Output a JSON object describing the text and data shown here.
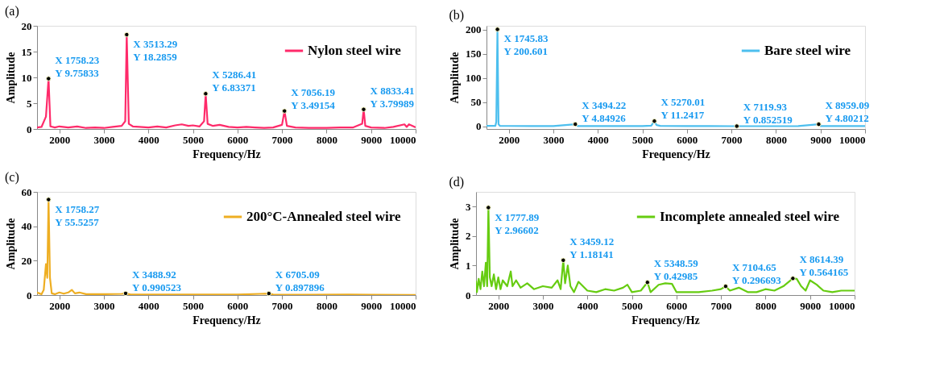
{
  "chart_data": [
    {
      "type": "line",
      "title": "(a)",
      "xlabel": "Frequency/Hz",
      "ylabel": "Amplitude",
      "xlim": [
        1500,
        10000
      ],
      "xticks": [
        2000,
        3000,
        4000,
        5000,
        6000,
        7000,
        8000,
        9000,
        10000
      ],
      "ylim": [
        0,
        20
      ],
      "yticks": [
        0,
        5,
        10,
        15,
        20
      ],
      "grid": false,
      "legend": "top right",
      "series": [
        {
          "name": "Nylon steel wire",
          "color": "#ff2a6a",
          "x": [
            1500,
            1600,
            1700,
            1758.23,
            1800,
            1900,
            2000,
            2200,
            2400,
            2600,
            2800,
            3000,
            3200,
            3400,
            3480,
            3513.29,
            3560,
            3650,
            3800,
            4000,
            4200,
            4400,
            4600,
            4750,
            4900,
            5000,
            5150,
            5250,
            5286.41,
            5330,
            5450,
            5600,
            5800,
            6000,
            6200,
            6400,
            6600,
            6800,
            7000,
            7056.19,
            7110,
            7300,
            7600,
            8000,
            8300,
            8600,
            8800,
            8833.41,
            8870,
            9000,
            9300,
            9500,
            9750,
            9800,
            9850,
            10000
          ],
          "values": [
            0.3,
            0.4,
            2.4,
            9.75833,
            0.5,
            0.3,
            0.5,
            0.3,
            0.5,
            0.2,
            0.3,
            0.2,
            0.4,
            0.6,
            1.5,
            18.2859,
            1.0,
            0.5,
            0.4,
            0.3,
            0.5,
            0.3,
            0.7,
            0.9,
            0.6,
            0.7,
            0.5,
            1.5,
            6.83371,
            1.0,
            0.6,
            0.8,
            0.4,
            0.3,
            0.4,
            0.3,
            0.2,
            0.3,
            0.8,
            3.49154,
            0.6,
            0.3,
            0.2,
            0.2,
            0.3,
            0.3,
            1.0,
            3.79989,
            0.6,
            0.3,
            0.2,
            0.4,
            0.9,
            0.4,
            0.9,
            0.3
          ]
        }
      ],
      "annotations": [
        {
          "text": "X 1758.23\nY 9.75833",
          "x": 1758.23,
          "y": 9.75833
        },
        {
          "text": "X 3513.29\nY 18.2859",
          "x": 3513.29,
          "y": 18.2859
        },
        {
          "text": "X 5286.41\nY 6.83371",
          "x": 5286.41,
          "y": 6.83371
        },
        {
          "text": "X 7056.19\nY 3.49154",
          "x": 7056.19,
          "y": 3.49154
        },
        {
          "text": "X 8833.41\nY 3.79989",
          "x": 8833.41,
          "y": 3.79989
        }
      ]
    },
    {
      "type": "line",
      "title": "(b)",
      "xlabel": "Frequency/Hz",
      "ylabel": "Amplitude",
      "xlim": [
        1500,
        10000
      ],
      "xticks": [
        2000,
        3000,
        4000,
        5000,
        6000,
        7000,
        8000,
        9000,
        10000
      ],
      "ylim": [
        -5,
        208
      ],
      "yticks": [
        0,
        50,
        100,
        150,
        200
      ],
      "grid": false,
      "legend": "top right",
      "series": [
        {
          "name": "Bare steel wire",
          "color": "#4dbfee",
          "x": [
            1500,
            1700,
            1720,
            1745.83,
            1770,
            1800,
            2000,
            2500,
            3000,
            3494.22,
            3550,
            4000,
            4500,
            5000,
            5200,
            5270.01,
            5320,
            5400,
            6000,
            6500,
            7000,
            7119.93,
            7500,
            8000,
            8500,
            8959.09,
            9000,
            9500,
            10000
          ],
          "values": [
            1.5,
            1.5,
            10,
            200.601,
            5,
            1.5,
            1.2,
            1.0,
            1.0,
            4.84926,
            1,
            1,
            1,
            1,
            2,
            11.2417,
            3,
            1.5,
            1,
            1,
            0.8,
            0.852519,
            0.8,
            0.8,
            1,
            4.80212,
            1,
            1,
            1
          ]
        }
      ],
      "annotations": [
        {
          "text": "X 1745.83\nY 200.601",
          "x": 1745.83,
          "y": 200.601
        },
        {
          "text": "X 3494.22\nY 4.84926",
          "x": 3494.22,
          "y": 4.84926
        },
        {
          "text": "X 5270.01\nY 11.2417",
          "x": 5270.01,
          "y": 11.2417
        },
        {
          "text": "X 7119.93\nY 0.852519",
          "x": 7119.93,
          "y": 0.852519
        },
        {
          "text": "X 8959.09\nY 4.80212",
          "x": 8959.09,
          "y": 4.80212
        }
      ]
    },
    {
      "type": "line",
      "title": "(c)",
      "xlabel": "Frequency/Hz",
      "ylabel": "Amplitude",
      "xlim": [
        1500,
        10000
      ],
      "xticks": [
        2000,
        3000,
        4000,
        5000,
        6000,
        7000,
        8000,
        9000,
        10000
      ],
      "ylim": [
        0,
        60
      ],
      "yticks": [
        0,
        20,
        40,
        60
      ],
      "grid": false,
      "legend": "top right",
      "series": [
        {
          "name": "200°C-Annealed steel wire",
          "color": "#eeae22",
          "x": [
            1500,
            1550,
            1600,
            1650,
            1700,
            1730,
            1758.27,
            1790,
            1830,
            1900,
            2000,
            2100,
            2200,
            2280,
            2350,
            2450,
            2600,
            3000,
            3400,
            3488.92,
            3600,
            4000,
            5000,
            6000,
            6500,
            6705.09,
            6800,
            7500,
            8500,
            9000,
            10000
          ],
          "values": [
            1.5,
            1.0,
            0.5,
            3,
            18,
            10,
            55.5257,
            10,
            1,
            0.5,
            1.5,
            0.8,
            1.5,
            3,
            1,
            1.5,
            0.5,
            0.5,
            0.7,
            0.990523,
            0.3,
            0.3,
            0.3,
            0.3,
            0.7,
            0.897896,
            0.3,
            0.2,
            0.3,
            0.2,
            0.1
          ]
        }
      ],
      "annotations": [
        {
          "text": "X 1758.27\nY 55.5257",
          "x": 1758.27,
          "y": 55.5257
        },
        {
          "text": "X 3488.92\nY 0.990523",
          "x": 3488.92,
          "y": 0.990523
        },
        {
          "text": "X 6705.09\nY 0.897896",
          "x": 6705.09,
          "y": 0.897896
        }
      ]
    },
    {
      "type": "line",
      "title": "(d)",
      "xlabel": "Frequency/Hz",
      "ylabel": "Amplitude",
      "xlim": [
        1500,
        10000
      ],
      "xticks": [
        2000,
        3000,
        4000,
        5000,
        6000,
        7000,
        8000,
        9000,
        10000
      ],
      "ylim": [
        0,
        3.5
      ],
      "yticks": [
        0,
        1,
        2,
        3
      ],
      "grid": false,
      "legend": "top right",
      "series": [
        {
          "name": "Incomplete annealed steel wire",
          "color": "#66cc11",
          "x": [
            1500,
            1520,
            1560,
            1600,
            1640,
            1680,
            1720,
            1750,
            1777.89,
            1810,
            1850,
            1900,
            1950,
            2000,
            2050,
            2100,
            2200,
            2280,
            2320,
            2400,
            2500,
            2650,
            2800,
            3000,
            3200,
            3330,
            3400,
            3459.12,
            3500,
            3560,
            3620,
            3700,
            3800,
            3900,
            4000,
            4200,
            4400,
            4600,
            4800,
            4900,
            5000,
            5200,
            5348.59,
            5420,
            5600,
            5750,
            5900,
            6000,
            6200,
            6500,
            6800,
            7000,
            7104.65,
            7200,
            7400,
            7600,
            7800,
            8000,
            8200,
            8400,
            8614.39,
            8700,
            8800,
            8900,
            9000,
            9150,
            9300,
            9500,
            9700,
            10000
          ],
          "values": [
            0.5,
            0.1,
            0.55,
            0.2,
            0.8,
            0.3,
            1.1,
            0.3,
            2.96602,
            0.6,
            0.3,
            0.7,
            0.2,
            0.6,
            0.2,
            0.5,
            0.3,
            0.8,
            0.3,
            0.5,
            0.25,
            0.4,
            0.2,
            0.3,
            0.25,
            0.5,
            0.2,
            1.18141,
            0.4,
            1.0,
            0.3,
            0.1,
            0.45,
            0.3,
            0.15,
            0.1,
            0.2,
            0.15,
            0.25,
            0.35,
            0.1,
            0.15,
            0.42985,
            0.1,
            0.35,
            0.4,
            0.38,
            0.1,
            0.1,
            0.1,
            0.15,
            0.2,
            0.296693,
            0.15,
            0.25,
            0.1,
            0.1,
            0.2,
            0.15,
            0.3,
            0.564165,
            0.55,
            0.3,
            0.15,
            0.5,
            0.35,
            0.15,
            0.1,
            0.15,
            0.15
          ]
        }
      ],
      "annotations": [
        {
          "text": "X 1777.89\nY 2.96602",
          "x": 1777.89,
          "y": 2.96602
        },
        {
          "text": "X 3459.12\nY 1.18141",
          "x": 3459.12,
          "y": 1.18141
        },
        {
          "text": "X 5348.59\nY 0.42985",
          "x": 5348.59,
          "y": 0.42985
        },
        {
          "text": "X 7104.65\nY 0.296693",
          "x": 7104.65,
          "y": 0.296693
        },
        {
          "text": "X 8614.39\nY 0.564165",
          "x": 8614.39,
          "y": 0.564165
        }
      ]
    }
  ]
}
